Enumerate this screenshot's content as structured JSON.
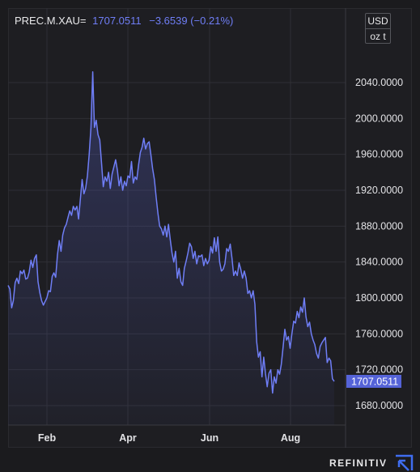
{
  "header": {
    "symbol": "PREC.M.XAU=",
    "last": "1707.0511",
    "change": "−3.6539 (−0.21%)"
  },
  "units": {
    "currency": "USD",
    "weight": "oz t"
  },
  "brand": {
    "name": "REFINITIV",
    "icon": "refinitiv-arrow-icon"
  },
  "colors": {
    "line": "#6f7ef6",
    "last_label_bg": "#5563d8",
    "background": "#1e1e22"
  },
  "chart_data": {
    "type": "area",
    "title": "",
    "xlabel": "",
    "ylabel": "",
    "ylim": [
      1670,
      2080
    ],
    "grid": true,
    "x_tick_labels": [
      "Feb",
      "Apr",
      "Jun",
      "Aug"
    ],
    "y_tick_labels": [
      "2040.0000",
      "2000.0000",
      "1960.0000",
      "1920.0000",
      "1880.0000",
      "1840.0000",
      "1800.0000",
      "1760.0000",
      "1720.0000",
      "1680.0000"
    ],
    "last_value_label": "1707.0511",
    "series": [
      {
        "values": [
          1814,
          1810,
          1789,
          1797,
          1817,
          1822,
          1816,
          1830,
          1827,
          1831,
          1821,
          1822,
          1829,
          1842,
          1834,
          1844,
          1848,
          1818,
          1806,
          1797,
          1792,
          1796,
          1800,
          1808,
          1807,
          1824,
          1828,
          1823,
          1848,
          1864,
          1852,
          1870,
          1878,
          1882,
          1890,
          1897,
          1892,
          1902,
          1898,
          1902,
          1888,
          1910,
          1932,
          1916,
          1922,
          1936,
          1960,
          1990,
          2052,
          1990,
          1998,
          1982,
          1976,
          1950,
          1924,
          1935,
          1930,
          1940,
          1922,
          1938,
          1946,
          1954,
          1942,
          1925,
          1935,
          1920,
          1930,
          1925,
          1936,
          1934,
          1952,
          1928,
          1935,
          1932,
          1948,
          1962,
          1968,
          1978,
          1966,
          1972,
          1974,
          1960,
          1944,
          1932,
          1912,
          1894,
          1880,
          1877,
          1870,
          1880,
          1868,
          1882,
          1865,
          1850,
          1840,
          1852,
          1822,
          1833,
          1818,
          1814,
          1833,
          1841,
          1850,
          1861,
          1857,
          1844,
          1852,
          1838,
          1847,
          1846,
          1848,
          1836,
          1844,
          1838,
          1842,
          1857,
          1850,
          1867,
          1852,
          1868,
          1840,
          1830,
          1832,
          1838,
          1855,
          1852,
          1860,
          1844,
          1825,
          1830,
          1825,
          1839,
          1832,
          1822,
          1830,
          1822,
          1805,
          1808,
          1800,
          1808,
          1793,
          1751,
          1734,
          1740,
          1712,
          1734,
          1716,
          1701,
          1716,
          1720,
          1694,
          1712,
          1705,
          1720,
          1715,
          1726,
          1745,
          1765,
          1753,
          1757,
          1744,
          1760,
          1774,
          1772,
          1785,
          1778,
          1790,
          1784,
          1800,
          1779,
          1768,
          1773,
          1760,
          1753,
          1748,
          1738,
          1733,
          1746,
          1750,
          1753,
          1756,
          1728,
          1733,
          1730,
          1710,
          1707
        ]
      }
    ]
  }
}
